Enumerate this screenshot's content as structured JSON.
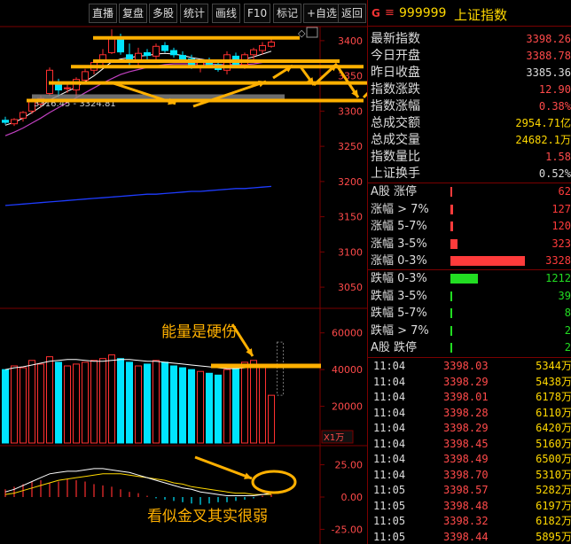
{
  "toolbar": [
    "直播",
    "复盘",
    "多股",
    "统计",
    "画线",
    "F10",
    "标记",
    "+自选",
    "返回"
  ],
  "stock": {
    "g_label": "G",
    "menu_icon": "≡",
    "code": "999999",
    "name": "上证指数"
  },
  "quotes": [
    {
      "label": "最新指数",
      "value": "3398.26",
      "color": "#ff4a4a"
    },
    {
      "label": "今日开盘",
      "value": "3388.78",
      "color": "#ff4a4a"
    },
    {
      "label": "昨日收盘",
      "value": "3385.36",
      "color": "#dddddd"
    },
    {
      "label": "指数涨跌",
      "value": "12.90",
      "color": "#ff4a4a"
    },
    {
      "label": "指数涨幅",
      "value": "0.38%",
      "color": "#ff4a4a"
    },
    {
      "label": "总成交额",
      "value": "2954.71亿",
      "color": "#ffd800"
    },
    {
      "label": "总成交量",
      "value": "24682.1万",
      "color": "#ffd800"
    },
    {
      "label": "指数量比",
      "value": "1.58",
      "color": "#ff4a4a"
    },
    {
      "label": "上证换手",
      "value": "0.52%",
      "color": "#dddddd"
    }
  ],
  "advance": [
    {
      "label": "A股 涨停",
      "value": "62",
      "fraction": 0.01
    },
    {
      "label": "涨幅 > 7%",
      "value": "127",
      "fraction": 0.04
    },
    {
      "label": "涨幅 5-7%",
      "value": "120",
      "fraction": 0.036
    },
    {
      "label": "涨幅 3-5%",
      "value": "323",
      "fraction": 0.097
    },
    {
      "label": "涨幅 0-3%",
      "value": "3328",
      "fraction": 1.0
    }
  ],
  "decline": [
    {
      "label": "跌幅 0-3%",
      "value": "1212",
      "fraction": 0.364
    },
    {
      "label": "跌幅 3-5%",
      "value": "39",
      "fraction": 0.012
    },
    {
      "label": "跌幅 5-7%",
      "value": "8",
      "fraction": 0.005
    },
    {
      "label": "跌幅 > 7%",
      "value": "2",
      "fraction": 0.003
    },
    {
      "label": "A股 跌停",
      "value": "2",
      "fraction": 0.003
    }
  ],
  "ticks": [
    {
      "time": "11:04",
      "price": "3398.03",
      "vol": "5344万"
    },
    {
      "time": "11:04",
      "price": "3398.29",
      "vol": "5438万"
    },
    {
      "time": "11:04",
      "price": "3398.01",
      "vol": "6178万"
    },
    {
      "time": "11:04",
      "price": "3398.28",
      "vol": "6110万"
    },
    {
      "time": "11:04",
      "price": "3398.29",
      "vol": "6420万"
    },
    {
      "time": "11:04",
      "price": "3398.45",
      "vol": "5160万"
    },
    {
      "time": "11:04",
      "price": "3398.49",
      "vol": "6500万"
    },
    {
      "time": "11:04",
      "price": "3398.70",
      "vol": "5310万"
    },
    {
      "time": "11:05",
      "price": "3398.57",
      "vol": "5282万"
    },
    {
      "time": "11:05",
      "price": "3398.48",
      "vol": "6197万"
    },
    {
      "time": "11:05",
      "price": "3398.32",
      "vol": "6182万"
    },
    {
      "time": "11:05",
      "price": "3398.44",
      "vol": "5895万"
    }
  ],
  "chart": {
    "price_axis": [
      "3400",
      "3350",
      "3300",
      "3250",
      "3200",
      "3150",
      "3100",
      "3050"
    ],
    "range_label": "3316.45 - 3324.81",
    "volume_axis": [
      "60000",
      "40000",
      "20000"
    ],
    "volume_unit": "X1万",
    "macd_axis": [
      "25.00",
      "0.00",
      "-25.00"
    ],
    "annotation_energy": "能量是硬伤",
    "annotation_macd": "看似金叉其实很弱",
    "colors": {
      "up": "#ff3030",
      "down": "#00e5ff",
      "annotation": "#ffb000",
      "ma_long": "#1e3cff"
    }
  },
  "chart_data": {
    "type": "candlestick",
    "price_ylim": [
      3030,
      3420
    ],
    "candles": [
      {
        "o": 3287,
        "h": 3292,
        "l": 3281,
        "c": 3284
      },
      {
        "o": 3282,
        "h": 3290,
        "l": 3279,
        "c": 3288
      },
      {
        "o": 3290,
        "h": 3300,
        "l": 3285,
        "c": 3298
      },
      {
        "o": 3300,
        "h": 3318,
        "l": 3296,
        "c": 3315
      },
      {
        "o": 3310,
        "h": 3322,
        "l": 3305,
        "c": 3318
      },
      {
        "o": 3325,
        "h": 3362,
        "l": 3322,
        "c": 3358
      },
      {
        "o": 3340,
        "h": 3346,
        "l": 3320,
        "c": 3330
      },
      {
        "o": 3332,
        "h": 3338,
        "l": 3326,
        "c": 3333
      },
      {
        "o": 3330,
        "h": 3348,
        "l": 3320,
        "c": 3345
      },
      {
        "o": 3344,
        "h": 3360,
        "l": 3338,
        "c": 3356
      },
      {
        "o": 3358,
        "h": 3372,
        "l": 3352,
        "c": 3369
      },
      {
        "o": 3372,
        "h": 3388,
        "l": 3362,
        "c": 3380
      },
      {
        "o": 3383,
        "h": 3416,
        "l": 3381,
        "c": 3404
      },
      {
        "o": 3404,
        "h": 3410,
        "l": 3380,
        "c": 3384
      },
      {
        "o": 3380,
        "h": 3396,
        "l": 3362,
        "c": 3371
      },
      {
        "o": 3372,
        "h": 3390,
        "l": 3362,
        "c": 3382
      },
      {
        "o": 3383,
        "h": 3388,
        "l": 3370,
        "c": 3379
      },
      {
        "o": 3378,
        "h": 3396,
        "l": 3372,
        "c": 3392
      },
      {
        "o": 3393,
        "h": 3398,
        "l": 3383,
        "c": 3386
      },
      {
        "o": 3386,
        "h": 3390,
        "l": 3376,
        "c": 3380
      },
      {
        "o": 3379,
        "h": 3385,
        "l": 3370,
        "c": 3374
      },
      {
        "o": 3374,
        "h": 3380,
        "l": 3360,
        "c": 3363
      },
      {
        "o": 3364,
        "h": 3374,
        "l": 3355,
        "c": 3370
      },
      {
        "o": 3369,
        "h": 3376,
        "l": 3362,
        "c": 3366
      },
      {
        "o": 3366,
        "h": 3372,
        "l": 3356,
        "c": 3359
      },
      {
        "o": 3358,
        "h": 3385,
        "l": 3352,
        "c": 3380
      },
      {
        "o": 3378,
        "h": 3383,
        "l": 3362,
        "c": 3366
      },
      {
        "o": 3366,
        "h": 3383,
        "l": 3360,
        "c": 3380
      },
      {
        "o": 3380,
        "h": 3390,
        "l": 3372,
        "c": 3387
      },
      {
        "o": 3386,
        "h": 3398,
        "l": 3380,
        "c": 3393
      },
      {
        "o": 3392,
        "h": 3405,
        "l": 3390,
        "c": 3398
      }
    ],
    "ma_short": [
      3280,
      3284,
      3290,
      3298,
      3306,
      3316,
      3322,
      3328,
      3334,
      3342,
      3350,
      3360,
      3370,
      3374,
      3376,
      3378,
      3379,
      3381,
      3382,
      3381,
      3379,
      3376,
      3374,
      3372,
      3370,
      3372,
      3372,
      3374,
      3377,
      3381,
      3385
    ],
    "ma_mid": [
      3265,
      3270,
      3276,
      3283,
      3290,
      3298,
      3305,
      3312,
      3319,
      3326,
      3333,
      3340,
      3346,
      3352,
      3356,
      3359,
      3362,
      3364,
      3366,
      3367,
      3367,
      3367,
      3367,
      3367,
      3366,
      3366,
      3366,
      3366,
      3367,
      3369,
      3371
    ],
    "ma_long": [
      3166,
      3167,
      3168,
      3169,
      3170,
      3171,
      3172,
      3173,
      3174,
      3175,
      3176,
      3177,
      3178,
      3179,
      3180,
      3181,
      3182,
      3182,
      3183,
      3184,
      3185,
      3186,
      3186,
      3187,
      3188,
      3189,
      3190,
      3190,
      3191,
      3192,
      3193
    ],
    "volume_ylim": [
      0,
      70000
    ],
    "volume": [
      40000,
      42000,
      41000,
      45000,
      43000,
      47000,
      44000,
      42000,
      43000,
      44000,
      45000,
      46000,
      48000,
      46000,
      44000,
      42000,
      43000,
      45000,
      44000,
      42000,
      41000,
      40000,
      39000,
      38000,
      37000,
      40000,
      42000,
      44000,
      45000,
      42000,
      26000
    ],
    "volume_ma": [
      40000,
      41000,
      41500,
      42500,
      43500,
      44500,
      45000,
      45500,
      45500,
      45000,
      44500,
      44500,
      45000,
      45500,
      45500,
      45000,
      44500,
      44500,
      44000,
      43500,
      43000,
      42500,
      42000,
      41500,
      41000,
      40500,
      40500,
      41000,
      41500,
      42000,
      42000
    ],
    "macd_ylim": [
      -35,
      35
    ],
    "macd_hist": [
      6,
      8,
      10,
      12,
      13,
      11,
      12,
      14,
      13,
      12,
      10,
      9,
      8,
      6,
      4,
      3,
      1,
      -1,
      -2,
      -3,
      -4,
      -5,
      -6,
      -5,
      -4,
      -4,
      -3,
      -2,
      -1,
      1,
      2
    ],
    "dif": [
      4,
      6,
      9,
      12,
      15,
      18,
      19,
      20,
      20,
      21,
      22,
      22,
      21,
      20,
      19,
      17,
      15,
      13,
      11,
      9,
      7,
      6,
      4,
      3,
      2,
      1,
      1,
      1,
      1,
      2,
      3
    ],
    "dea": [
      2,
      3,
      5,
      7,
      9,
      11,
      13,
      14,
      15,
      16,
      17,
      18,
      18,
      18,
      17,
      16,
      15,
      14,
      13,
      11,
      10,
      8,
      7,
      6,
      5,
      4,
      3,
      3,
      2,
      2,
      2
    ]
  }
}
